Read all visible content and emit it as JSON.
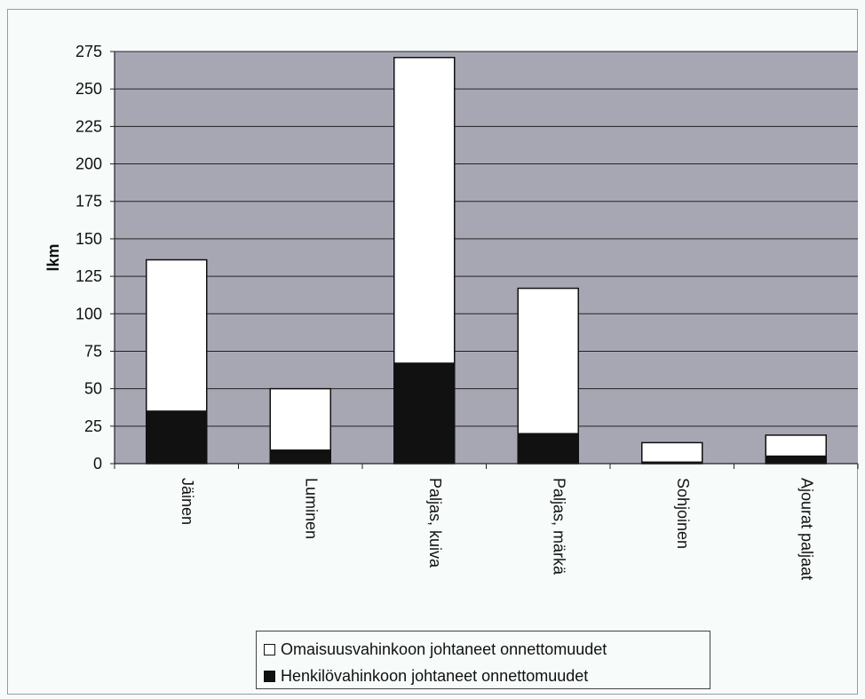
{
  "chart_data": {
    "type": "bar",
    "stacked": true,
    "categories": [
      "Jäinen",
      "Luminen",
      "Paljas, kuiva",
      "Paljas, märkä",
      "Sohjoinen",
      "Ajourat paljaat"
    ],
    "series": [
      {
        "name": "Henkilövahinkoon johtaneet onnettomuudet",
        "values": [
          35,
          9,
          67,
          20,
          1,
          5
        ],
        "color": "#111111"
      },
      {
        "name": "Omaisuusvahinkoon johtaneet onnettomuudet",
        "values": [
          101,
          41,
          204,
          97,
          13,
          14
        ],
        "color": "#ffffff"
      }
    ],
    "ylabel": "lkm",
    "ylim": [
      0,
      275
    ],
    "yticks": [
      0,
      25,
      50,
      75,
      100,
      125,
      150,
      175,
      200,
      225,
      250,
      275
    ],
    "grid": true,
    "plot_background": "#a7a7b4",
    "legend_position": "bottom"
  },
  "legend": {
    "items": [
      {
        "label": "Omaisuusvahinkoon johtaneet onnettomuudet",
        "color": "#ffffff"
      },
      {
        "label": "Henkilövahinkoon johtaneet onnettomuudet",
        "color": "#111111"
      }
    ]
  }
}
